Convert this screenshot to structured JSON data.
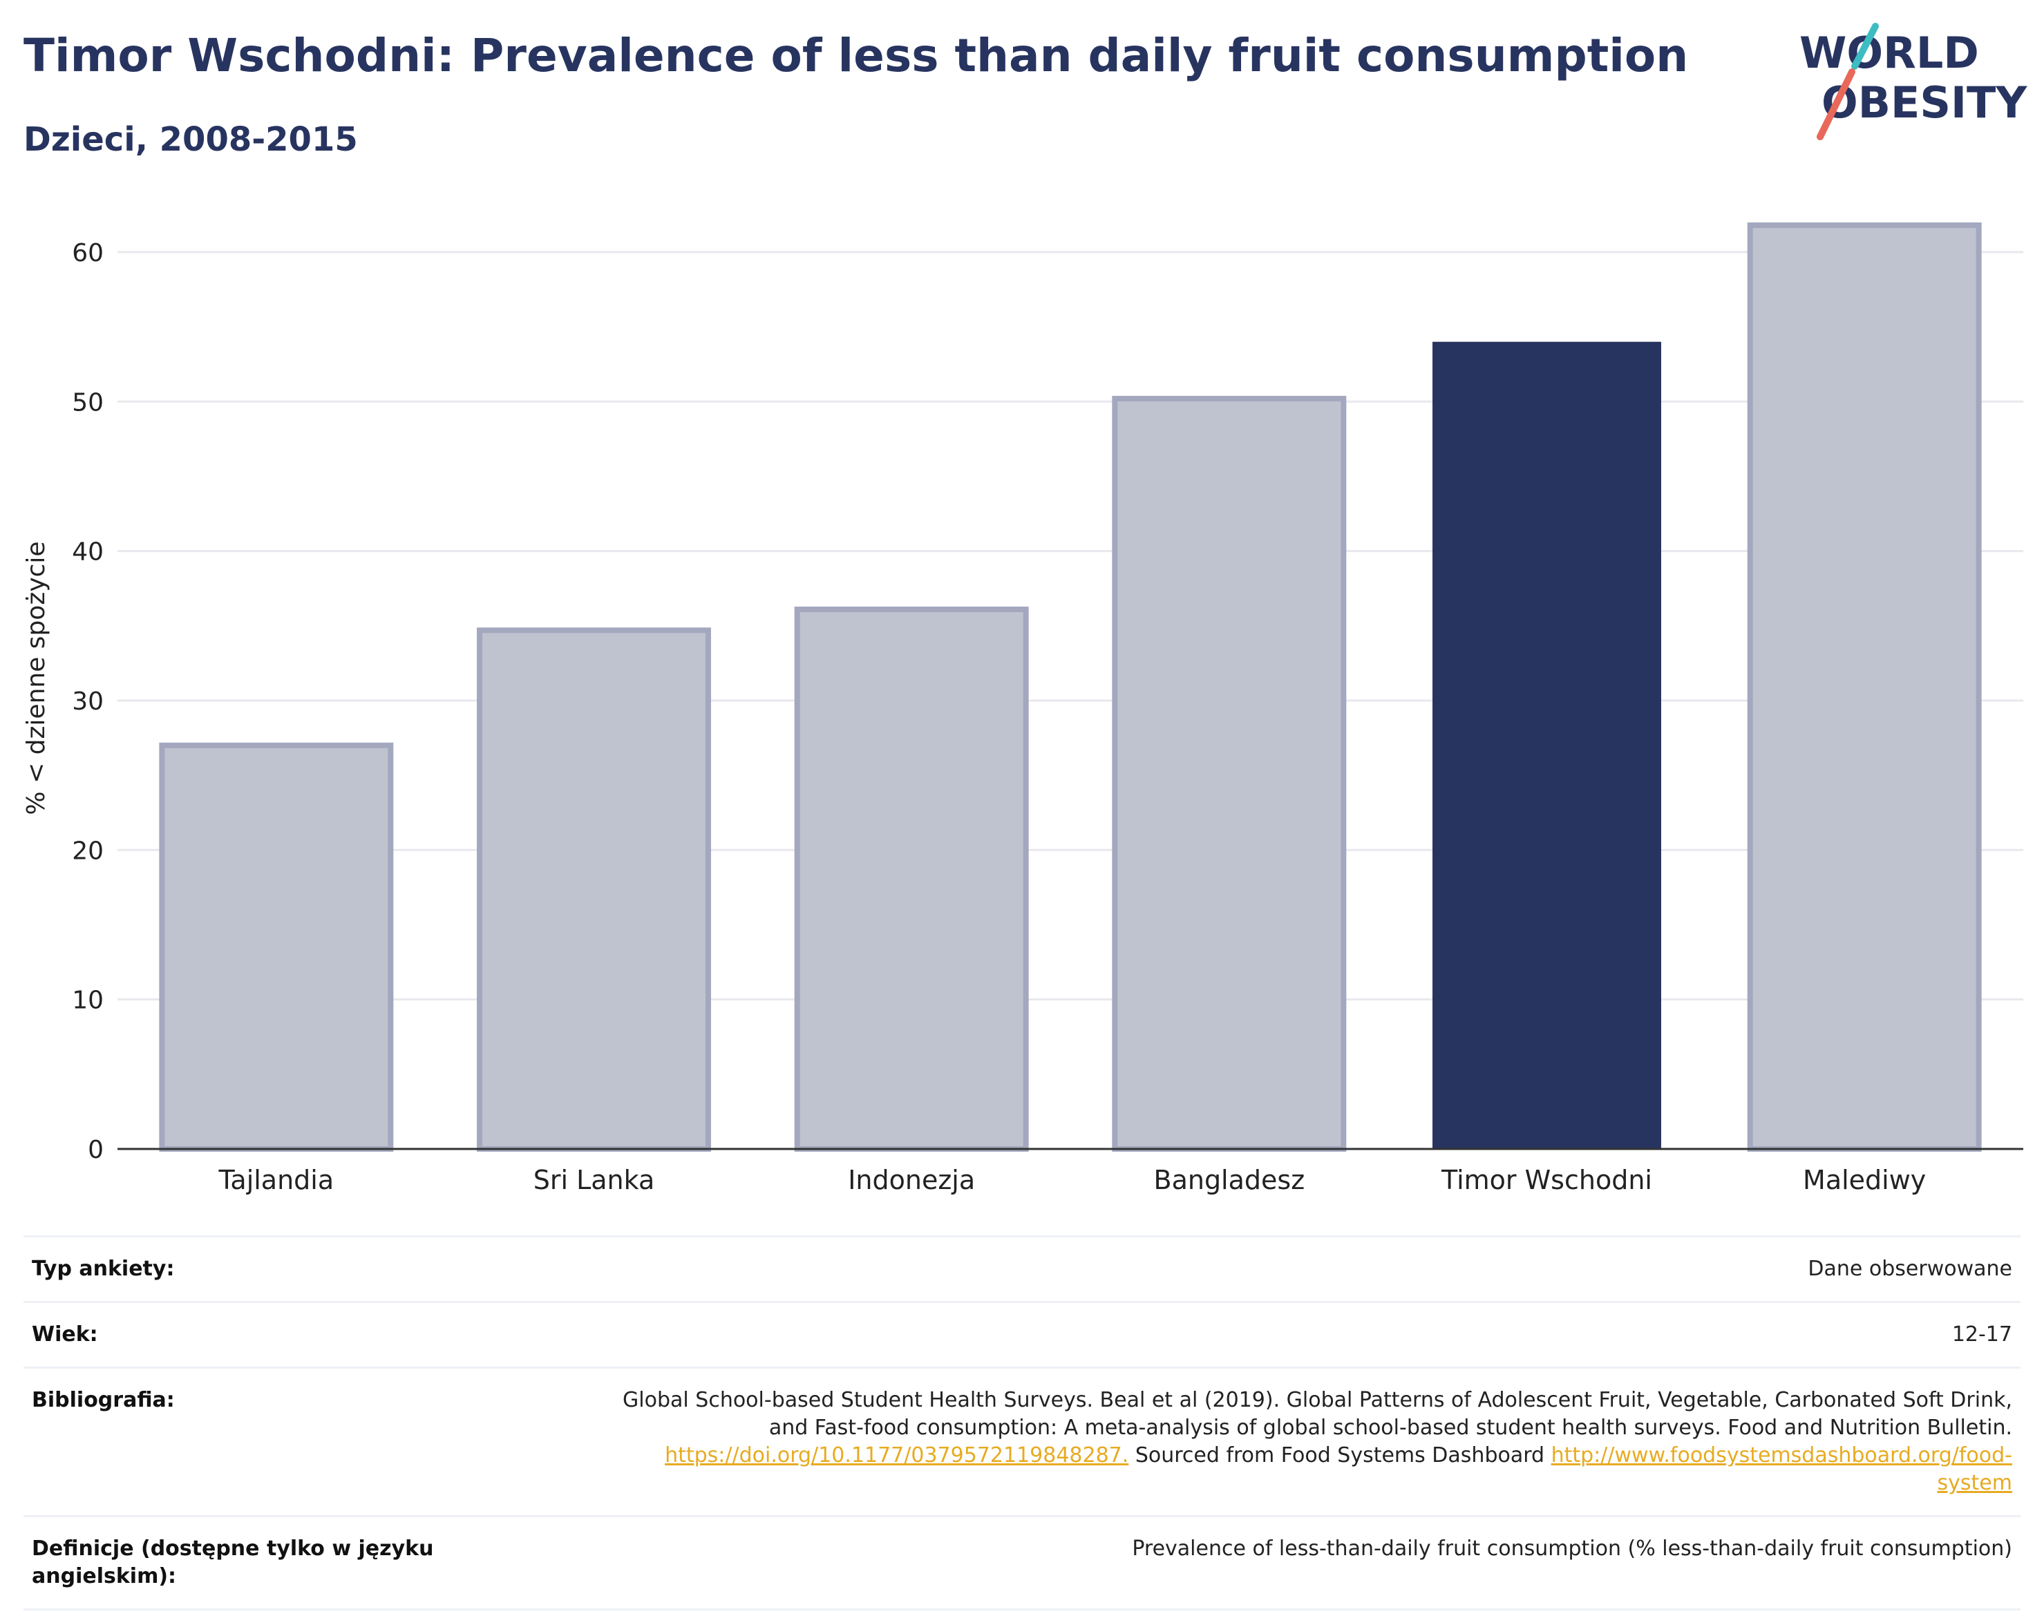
{
  "header": {
    "title": "Timor Wschodni: Prevalence of less than daily fruit consumption",
    "subtitle": "Dzieci, 2008-2015"
  },
  "logo": {
    "line1": "WORLD",
    "line2": "OBESITY",
    "colors": {
      "text": "#283460",
      "accent_teal": "#3dbcc2",
      "accent_red": "#e8685a"
    }
  },
  "chart_data": {
    "type": "bar",
    "title": "",
    "xlabel": "",
    "ylabel": "% < dzienne spożycie",
    "ylim": [
      0,
      63
    ],
    "yticks": [
      0,
      10,
      20,
      30,
      40,
      50,
      60
    ],
    "grid": true,
    "categories": [
      "Tajlandia",
      "Sri Lanka",
      "Indonezja",
      "Bangladesz",
      "Timor Wschodni",
      "Malediwy"
    ],
    "values": [
      27.0,
      34.7,
      36.1,
      50.2,
      54.0,
      61.8
    ],
    "highlight": "Timor Wschodni",
    "colors": {
      "bar": "#bfc3cf",
      "bar_edge": "#a3a8bf",
      "highlight": "#283460",
      "grid": "#e8e8ee",
      "axis": "#333333"
    }
  },
  "meta": {
    "rows": [
      {
        "label": "Typ ankiety:",
        "value": "Dane obserwowane"
      },
      {
        "label": "Wiek:",
        "value": "12-17"
      },
      {
        "label": "Bibliografia:",
        "value_line1": "Global School-based Student Health Surveys. Beal et al (2019). Global Patterns of Adolescent Fruit, Vegetable, Carbonated Soft Drink,",
        "value_line2": "and Fast-food consumption: A meta-analysis of global school-based student health surveys. Food and Nutrition Bulletin.",
        "link1": "https://doi.org/10.1177/0379572119848287.",
        "mid_text": " Sourced from Food Systems Dashboard ",
        "link2_part1": "http://www.foodsystemsdashboard.org/food-",
        "link2_part2": "system"
      },
      {
        "label_line1": "Definicje (dostępne tylko w języku",
        "label_line2": "angielskim):",
        "value": "Prevalence of less-than-daily fruit consumption (% less-than-daily fruit consumption)"
      }
    ]
  }
}
